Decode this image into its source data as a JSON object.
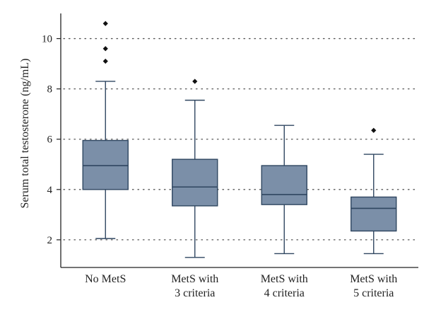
{
  "chart_data": {
    "type": "box",
    "ylabel": "Serum total testosterone (ng/mL)",
    "xlabel": "",
    "ylim": [
      0.9,
      11.0
    ],
    "yticks": [
      2,
      4,
      6,
      8,
      10
    ],
    "grid": "horizontal dotted",
    "box_color": "#7b8fa8",
    "line_color": "#2f4660",
    "categories": [
      [
        "No MetS"
      ],
      [
        "MetS with",
        "3 criteria"
      ],
      [
        "MetS with",
        "4 criteria"
      ],
      [
        "MetS with",
        "5 criteria"
      ]
    ],
    "boxes": [
      {
        "whisker_low": 2.05,
        "q1": 4.0,
        "median": 4.95,
        "q3": 5.95,
        "whisker_high": 8.3,
        "outliers": [
          9.1,
          9.6,
          10.6
        ]
      },
      {
        "whisker_low": 1.3,
        "q1": 3.35,
        "median": 4.1,
        "q3": 5.2,
        "whisker_high": 7.55,
        "outliers": [
          8.3
        ]
      },
      {
        "whisker_low": 1.45,
        "q1": 3.4,
        "median": 3.8,
        "q3": 4.95,
        "whisker_high": 6.55,
        "outliers": []
      },
      {
        "whisker_low": 1.45,
        "q1": 2.35,
        "median": 3.25,
        "q3": 3.7,
        "whisker_high": 5.4,
        "outliers": [
          6.35
        ]
      }
    ]
  }
}
